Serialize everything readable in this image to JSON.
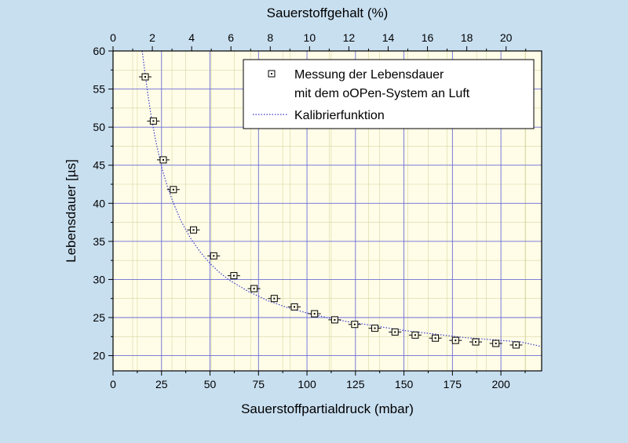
{
  "colors": {
    "background": "#c8dff0",
    "plot_background": "#fffde8",
    "major_grid": "#6b6bd6",
    "minor_grid": "#d6d6a0",
    "curve": "#3a3ac8",
    "marker": "#000000"
  },
  "chart_data": {
    "type": "scatter",
    "xlabel": "Sauerstoffpartialdruck (mbar)",
    "ylabel": "Lebensdauer [µs]",
    "x2label": "Sauerstoffgehalt (%)",
    "xlim": [
      0,
      221
    ],
    "ylim": [
      18,
      60
    ],
    "x2lim": [
      0,
      21.81
    ],
    "x_ticks": [
      0,
      25,
      50,
      75,
      100,
      125,
      150,
      175,
      200
    ],
    "x_tick_labels": [
      "0",
      "25",
      "50",
      "75",
      "100",
      "125",
      "150",
      "175",
      "200"
    ],
    "y_ticks": [
      20,
      25,
      30,
      35,
      40,
      45,
      50,
      55,
      60
    ],
    "y_tick_labels": [
      "20",
      "25",
      "30",
      "35",
      "40",
      "45",
      "50",
      "55",
      "60"
    ],
    "x2_ticks": [
      0,
      2,
      4,
      6,
      8,
      10,
      12,
      14,
      16,
      18,
      20
    ],
    "x2_tick_labels": [
      "0",
      "2",
      "4",
      "6",
      "8",
      "10",
      "12",
      "14",
      "16",
      "18",
      "20"
    ],
    "grid": true,
    "legend_position": "top-right",
    "series": [
      {
        "name": "Messung der Lebensdauer mit dem oOPen-System an Luft",
        "legend_lines": [
          "Messung der Lebensdauer",
          "mit dem oOPen-System an Luft"
        ],
        "kind": "marker",
        "marker": "square",
        "x": [
          16.6,
          20.8,
          25.9,
          31.1,
          41.5,
          51.9,
          62.3,
          72.7,
          83.1,
          93.5,
          103.9,
          114.3,
          124.6,
          135.0,
          145.4,
          155.8,
          166.2,
          176.6,
          187.0,
          197.4,
          207.8
        ],
        "y": [
          56.6,
          50.8,
          45.7,
          41.8,
          36.5,
          33.1,
          30.5,
          28.8,
          27.5,
          26.4,
          25.5,
          24.7,
          24.1,
          23.6,
          23.1,
          22.7,
          22.3,
          22.0,
          21.8,
          21.6,
          21.4
        ]
      },
      {
        "name": "Kalibrierfunktion",
        "legend_lines": [
          "Kalibrierfunktion"
        ],
        "kind": "line",
        "line_style": "dotted",
        "x": [
          15,
          16.6,
          18,
          20,
          22,
          25,
          28,
          31,
          35,
          40,
          45,
          50,
          55,
          60,
          70,
          80,
          90,
          100,
          110,
          120,
          130,
          140,
          150,
          160,
          170,
          180,
          190,
          200,
          210,
          221
        ],
        "y": [
          60.5,
          56.9,
          54.2,
          50.9,
          48.2,
          44.8,
          42.2,
          40.1,
          37.7,
          35.4,
          33.6,
          32.1,
          30.9,
          29.9,
          28.4,
          27.2,
          26.3,
          25.6,
          25.0,
          24.5,
          24.1,
          23.7,
          23.3,
          23.0,
          22.7,
          22.4,
          22.2,
          22.0,
          21.8,
          21.2
        ]
      }
    ]
  }
}
